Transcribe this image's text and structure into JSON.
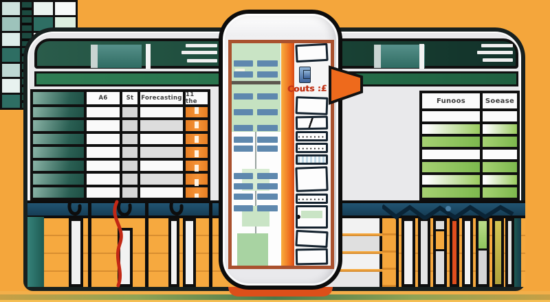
{
  "scene": {
    "title": "Illustration: two spreadsheet windows with a smartphone overlay",
    "colors": {
      "background_orange": "#F4A63C",
      "toolbar_green": "#1C4A3A",
      "ribbon_green": "#2F7D54",
      "row_header_teal": "#2A5F53",
      "column_orange": "#E87F23",
      "band_navy": "#1B4962",
      "band_teal": "#2A6E66",
      "bar_red": "#E04E1E",
      "bar_green": "#8FC45E",
      "bar_olive": "#C2B446",
      "screen_border_sienna": "#A9512E",
      "screen_bar_blue": "#5E88AE",
      "callout_red": "#C13317",
      "arrow_orange": "#EE6A1C"
    }
  },
  "left_sheet": {
    "table": {
      "headers": [
        "A6",
        "St",
        "Forecasting",
        "11 the"
      ],
      "row_count": 7
    }
  },
  "right_sheet": {
    "table": {
      "headers": [
        "Funoos",
        "Soease"
      ],
      "row_count": 7,
      "row_fills": [
        "white",
        "gradient",
        "green",
        "white",
        "green",
        "gradient",
        "green"
      ]
    },
    "mosaic_fills": [
      "#CFE3DE",
      "dash",
      "#EAF3F0",
      "#F7FAF9",
      "#9DC3BB",
      "dash",
      "#2E6E63",
      "#DCEFE0",
      "#DDEDE9",
      "dash",
      "#F4F8F6",
      "#CFE8D2",
      "#2E6E63",
      "dash",
      "#DFF0DC",
      "#F2F7F5",
      "#BFD8D3",
      "dash",
      "#8FC49A",
      "#2E6E63",
      "#E8F2EF",
      "dash",
      "#CFE8D2",
      "#DCEFE0",
      "#2E6E63",
      "dash",
      "#EAF3F0",
      "#9DC3BB"
    ]
  },
  "phone": {
    "callout": {
      "text": "Couts :£ 1",
      "color": "#C13317"
    },
    "dots": "•••••••••",
    "cards": [
      "plain",
      "chip",
      "label",
      "plain",
      "diag",
      "dots",
      "dots",
      "barcode",
      "plain",
      "dots",
      "green",
      "plain",
      "plain"
    ]
  },
  "charts": {
    "left": {
      "bar_colors": [
        "#F2F2F2",
        "#F2F2F2",
        "#F2F2F2",
        "#F2F2F2"
      ]
    },
    "right": {
      "bar_styles": [
        "white",
        "white",
        "orange-mid",
        "red",
        "white",
        "green-top",
        "olive",
        "white"
      ]
    }
  }
}
